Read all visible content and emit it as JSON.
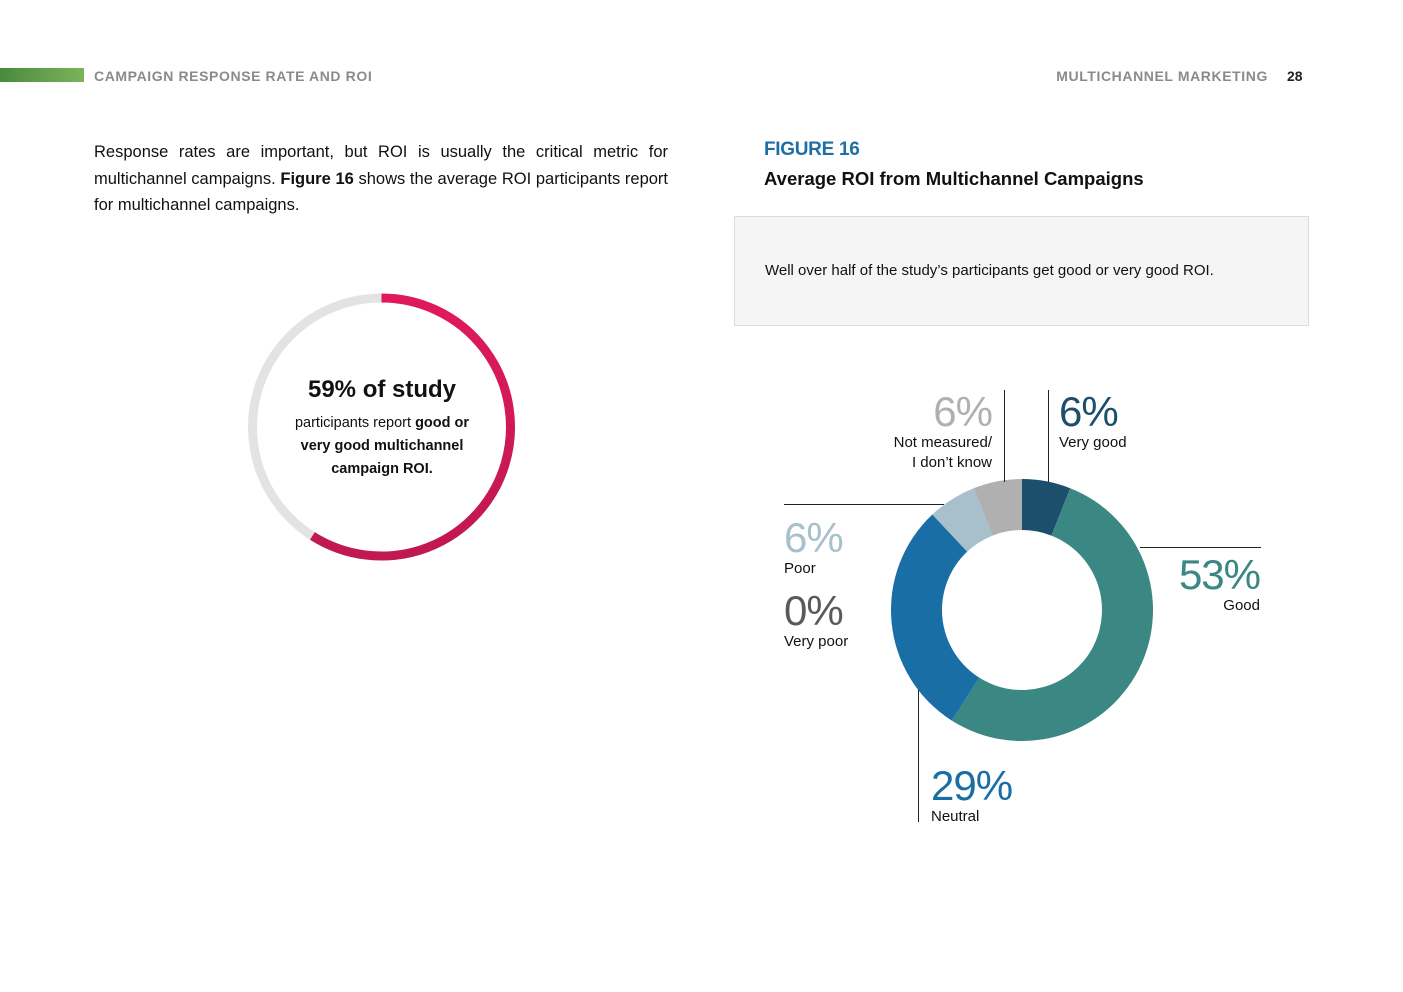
{
  "header": {
    "section": "CAMPAIGN RESPONSE RATE AND ROI",
    "report": "MULTICHANNEL MARKETING",
    "page_number": "28"
  },
  "intro": {
    "part1": "Response rates are important, but ROI is usually the critical metric for multichannel campaigns. ",
    "figure_ref": "Figure 16",
    "part2": " shows the average ROI participants report for multichannel campaigns."
  },
  "stat": {
    "percent": 59,
    "headline": "59% of study",
    "text_plain": "participants report ",
    "text_bold": "good or very good multichannel campaign ROI.",
    "colors": {
      "fill": "#d81b5a",
      "track": "#e3e3e3"
    }
  },
  "figure": {
    "label": "FIGURE 16",
    "title": "Average ROI from Multichannel Campaigns",
    "callout": "Well over half of the study’s participants get good or very good ROI."
  },
  "chart_data": {
    "type": "pie",
    "donut": true,
    "categories": [
      "Very good",
      "Good",
      "Neutral",
      "Very poor",
      "Poor",
      "Not measured/ I don’t know"
    ],
    "values": [
      6,
      53,
      29,
      0,
      6,
      6
    ],
    "value_labels": [
      "6%",
      "53%",
      "29%",
      "0%",
      "6%",
      "6%"
    ],
    "label_lines": [
      [
        "Very good"
      ],
      [
        "Good"
      ],
      [
        "Neutral"
      ],
      [
        "Very poor"
      ],
      [
        "Poor"
      ],
      [
        "Not measured/",
        "I don’t know"
      ]
    ],
    "colors": [
      "#1c4f6b",
      "#3a8783",
      "#1a6ea6",
      "#5a5a5a",
      "#a8c0cc",
      "#b0b0b0"
    ],
    "start": "top, clockwise"
  }
}
